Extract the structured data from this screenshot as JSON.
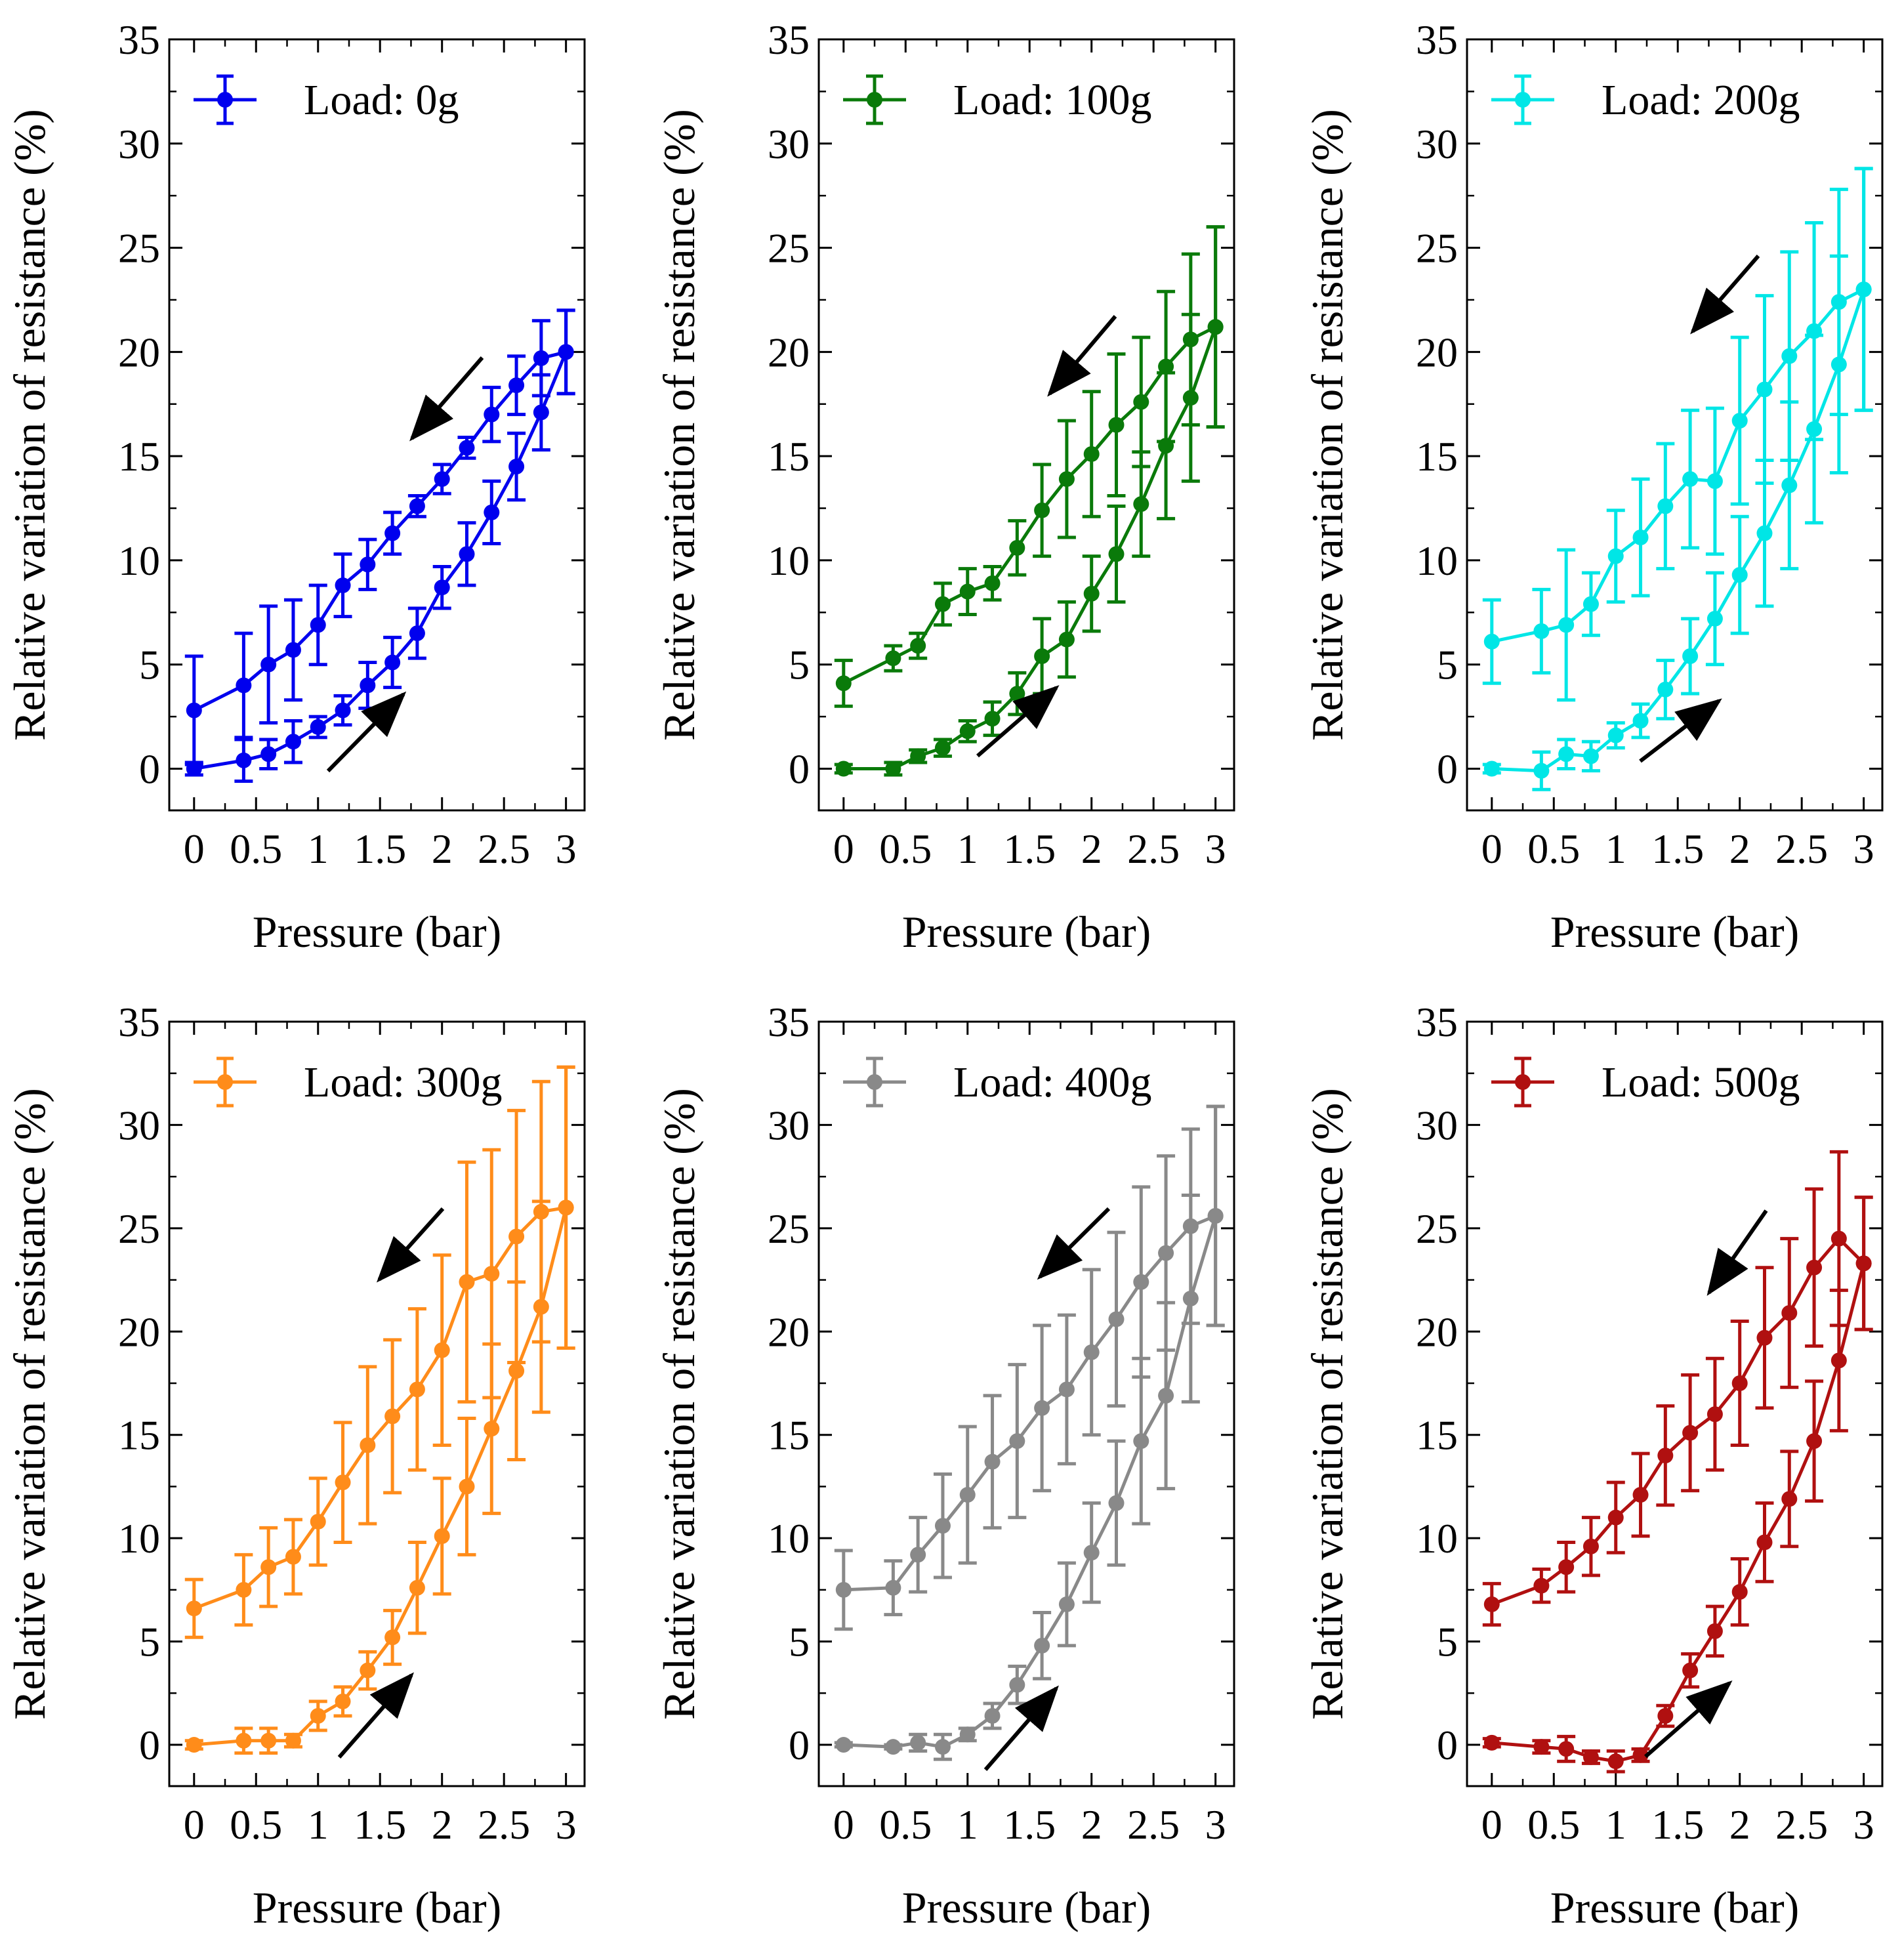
{
  "figure": {
    "xlabel": "Pressure (bar)",
    "ylabel": "Relative variation of resistance (%)",
    "xticks": [
      "0",
      "0.5",
      "1",
      "1.5",
      "2",
      "2.5",
      "3"
    ],
    "yticks": [
      "0",
      "5",
      "10",
      "15",
      "20",
      "25",
      "30",
      "35"
    ]
  },
  "chart_data": [
    {
      "type": "line",
      "title": "",
      "legend": "Load: 0g",
      "color": "#0000ee",
      "xlabel": "Pressure (bar)",
      "ylabel": "Relative variation of resistance (%)",
      "xlim": [
        -0.2,
        3.15
      ],
      "ylim": [
        -2,
        35
      ],
      "x": [
        0,
        0.4,
        0.6,
        0.8,
        1.0,
        1.2,
        1.4,
        1.6,
        1.8,
        2.0,
        2.2,
        2.4,
        2.6,
        2.8,
        3.0
      ],
      "series": [
        {
          "name": "loading (increasing pressure)",
          "values": [
            0,
            0.4,
            0.7,
            1.3,
            2.0,
            2.8,
            4.0,
            5.1,
            6.5,
            8.7,
            10.3,
            12.3,
            14.5,
            17.1,
            20.0
          ],
          "errors": [
            0.3,
            1.0,
            0.7,
            1.0,
            0.5,
            0.7,
            1.1,
            1.2,
            1.2,
            1.0,
            1.5,
            1.5,
            1.6,
            1.8,
            2.0
          ]
        },
        {
          "name": "unloading (decreasing pressure)",
          "values": [
            2.8,
            4.0,
            5.0,
            5.7,
            6.9,
            8.8,
            9.8,
            11.3,
            12.6,
            13.9,
            15.4,
            17.0,
            18.4,
            19.7,
            20.0
          ],
          "errors": [
            2.6,
            2.5,
            2.8,
            2.4,
            1.9,
            1.5,
            1.2,
            1.0,
            0.5,
            0.7,
            0.5,
            1.3,
            1.4,
            1.8,
            2.0
          ]
        }
      ]
    },
    {
      "type": "line",
      "title": "",
      "legend": "Load: 100g",
      "color": "#0a7a0a",
      "xlabel": "Pressure (bar)",
      "ylabel": "Relative variation of resistance (%)",
      "xlim": [
        -0.2,
        3.15
      ],
      "ylim": [
        -2,
        35
      ],
      "x": [
        0,
        0.4,
        0.6,
        0.8,
        1.0,
        1.2,
        1.4,
        1.6,
        1.8,
        2.0,
        2.2,
        2.4,
        2.6,
        2.8,
        3.0
      ],
      "series": [
        {
          "name": "loading (increasing pressure)",
          "values": [
            0,
            0,
            0.6,
            1.0,
            1.8,
            2.4,
            3.6,
            5.4,
            6.2,
            8.4,
            10.3,
            12.7,
            15.5,
            17.8,
            21.2
          ],
          "errors": [
            0.2,
            0.3,
            0.3,
            0.4,
            0.5,
            0.8,
            1.0,
            1.8,
            1.8,
            1.8,
            2.3,
            2.5,
            3.5,
            4.0,
            4.8
          ]
        },
        {
          "name": "unloading (decreasing pressure)",
          "values": [
            4.1,
            5.3,
            5.9,
            7.9,
            8.5,
            8.9,
            10.6,
            12.4,
            13.9,
            15.1,
            16.5,
            17.6,
            19.3,
            20.6,
            21.2
          ],
          "errors": [
            1.1,
            0.6,
            0.6,
            1.0,
            1.1,
            0.8,
            1.3,
            2.2,
            2.8,
            3.0,
            3.4,
            3.1,
            3.6,
            4.1,
            4.8
          ]
        }
      ]
    },
    {
      "type": "line",
      "title": "",
      "legend": "Load: 200g",
      "color": "#00e6e6",
      "xlabel": "Pressure (bar)",
      "ylabel": "Relative variation of resistance (%)",
      "xlim": [
        -0.2,
        3.15
      ],
      "ylim": [
        -2,
        35
      ],
      "x": [
        0,
        0.4,
        0.6,
        0.8,
        1.0,
        1.2,
        1.4,
        1.6,
        1.8,
        2.0,
        2.2,
        2.4,
        2.6,
        2.8,
        3.0
      ],
      "series": [
        {
          "name": "loading (increasing pressure)",
          "values": [
            0,
            -0.1,
            0.7,
            0.6,
            1.6,
            2.3,
            3.8,
            5.4,
            7.2,
            9.3,
            11.3,
            13.6,
            16.3,
            19.4,
            23.0
          ],
          "errors": [
            0.2,
            0.9,
            0.7,
            0.7,
            0.6,
            0.8,
            1.4,
            1.8,
            2.2,
            2.8,
            3.5,
            4.0,
            4.5,
            5.2,
            5.8
          ]
        },
        {
          "name": "unloading (decreasing pressure)",
          "values": [
            6.1,
            6.6,
            6.9,
            7.9,
            10.2,
            11.1,
            12.6,
            13.9,
            13.8,
            16.7,
            18.2,
            19.8,
            21.0,
            22.4,
            23.0
          ],
          "errors": [
            2.0,
            2.0,
            3.6,
            1.5,
            2.2,
            2.8,
            3.0,
            3.3,
            3.5,
            4.0,
            4.5,
            5.0,
            5.2,
            5.4,
            5.8
          ]
        }
      ]
    },
    {
      "type": "line",
      "title": "",
      "legend": "Load: 300g",
      "color": "#ff8c1a",
      "xlabel": "Pressure (bar)",
      "ylabel": "Relative variation of resistance (%)",
      "xlim": [
        -0.2,
        3.15
      ],
      "ylim": [
        -2,
        35
      ],
      "x": [
        0,
        0.4,
        0.6,
        0.8,
        1.0,
        1.2,
        1.4,
        1.6,
        1.8,
        2.0,
        2.2,
        2.4,
        2.6,
        2.8,
        3.0
      ],
      "series": [
        {
          "name": "loading (increasing pressure)",
          "values": [
            0,
            0.2,
            0.2,
            0.2,
            1.4,
            2.1,
            3.6,
            5.2,
            7.6,
            10.1,
            12.5,
            15.3,
            18.1,
            21.2,
            26.0
          ],
          "errors": [
            0.2,
            0.6,
            0.6,
            0.3,
            0.7,
            0.7,
            0.9,
            1.3,
            2.2,
            2.8,
            3.3,
            4.1,
            4.3,
            5.1,
            6.8
          ]
        },
        {
          "name": "unloading (decreasing pressure)",
          "values": [
            6.6,
            7.5,
            8.6,
            9.1,
            10.8,
            12.7,
            14.5,
            15.9,
            17.2,
            19.1,
            22.4,
            22.8,
            24.6,
            25.8,
            26.0
          ],
          "errors": [
            1.4,
            1.7,
            1.9,
            1.8,
            2.1,
            2.9,
            3.8,
            3.7,
            3.9,
            4.6,
            5.8,
            6.0,
            6.1,
            6.3,
            6.8
          ]
        }
      ]
    },
    {
      "type": "line",
      "title": "",
      "legend": "Load: 400g",
      "color": "#898989",
      "xlabel": "Pressure (bar)",
      "ylabel": "Relative variation of resistance (%)",
      "xlim": [
        -0.2,
        3.15
      ],
      "ylim": [
        -2,
        35
      ],
      "x": [
        0,
        0.4,
        0.6,
        0.8,
        1.0,
        1.2,
        1.4,
        1.6,
        1.8,
        2.0,
        2.2,
        2.4,
        2.6,
        2.8,
        3.0
      ],
      "series": [
        {
          "name": "loading (increasing pressure)",
          "values": [
            0,
            -0.1,
            0.1,
            -0.1,
            0.5,
            1.4,
            2.9,
            4.8,
            6.8,
            9.3,
            11.7,
            14.7,
            16.9,
            21.6,
            25.6
          ],
          "errors": [
            0.1,
            0.1,
            0.4,
            0.6,
            0.3,
            0.6,
            0.9,
            1.6,
            2.0,
            2.4,
            3.0,
            4.0,
            4.5,
            5.0,
            5.3
          ]
        },
        {
          "name": "unloading (decreasing pressure)",
          "values": [
            7.5,
            7.6,
            9.2,
            10.6,
            12.1,
            13.7,
            14.7,
            16.3,
            17.2,
            19.0,
            20.6,
            22.4,
            23.8,
            25.1,
            25.6
          ],
          "errors": [
            1.9,
            1.3,
            1.8,
            2.5,
            3.3,
            3.2,
            3.7,
            4.0,
            3.6,
            4.0,
            4.2,
            4.6,
            4.7,
            4.7,
            5.3
          ]
        }
      ]
    },
    {
      "type": "line",
      "title": "",
      "legend": "Load: 500g",
      "color": "#b01010",
      "xlabel": "Pressure (bar)",
      "ylabel": "Relative variation of resistance (%)",
      "xlim": [
        -0.2,
        3.15
      ],
      "ylim": [
        -2,
        35
      ],
      "x": [
        0,
        0.4,
        0.6,
        0.8,
        1.0,
        1.2,
        1.4,
        1.6,
        1.8,
        2.0,
        2.2,
        2.4,
        2.6,
        2.8,
        3.0
      ],
      "series": [
        {
          "name": "loading (increasing pressure)",
          "values": [
            0.1,
            -0.1,
            -0.2,
            -0.6,
            -0.8,
            -0.5,
            1.4,
            3.6,
            5.5,
            7.4,
            9.8,
            11.9,
            14.7,
            18.6,
            23.3
          ],
          "errors": [
            0.2,
            0.3,
            0.6,
            0.3,
            0.5,
            0.3,
            0.5,
            0.8,
            1.2,
            1.6,
            1.9,
            2.3,
            2.9,
            3.4,
            3.2
          ]
        },
        {
          "name": "unloading (decreasing pressure)",
          "values": [
            6.8,
            7.7,
            8.6,
            9.6,
            11.0,
            12.1,
            14.0,
            15.1,
            16.0,
            17.5,
            19.7,
            20.9,
            23.1,
            24.5,
            23.3
          ],
          "errors": [
            1.0,
            0.8,
            1.2,
            1.4,
            1.7,
            2.0,
            2.4,
            2.8,
            2.7,
            3.0,
            3.4,
            3.6,
            3.8,
            4.2,
            3.2
          ]
        }
      ]
    }
  ]
}
